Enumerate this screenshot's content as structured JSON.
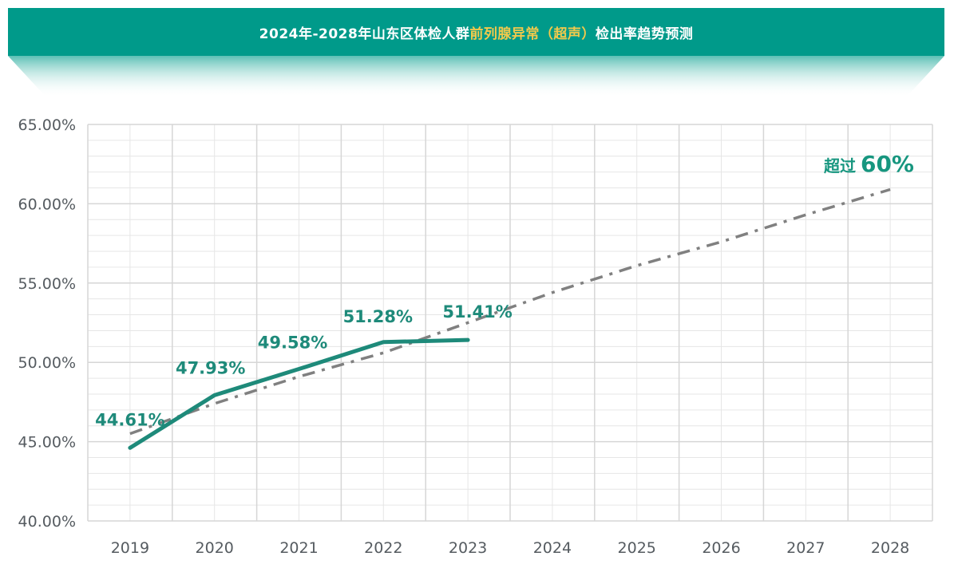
{
  "header": {
    "title_part1": "2024年-2028年山东区体检人群",
    "title_highlight": "前列腺异常（超声）",
    "title_part2": "检出率趋势预测"
  },
  "colors": {
    "banner": "#009a8a",
    "highlight": "#f2c94c",
    "actual_line": "#1e8a7a",
    "trend_line": "#808080",
    "grid": "#dcdcdc"
  },
  "chart_data": {
    "type": "line",
    "categories": [
      "2019",
      "2020",
      "2021",
      "2022",
      "2023",
      "2024",
      "2025",
      "2026",
      "2027",
      "2028"
    ],
    "ylim": [
      40,
      65
    ],
    "yticks": [
      40,
      45,
      50,
      55,
      60,
      65
    ],
    "ytick_labels": [
      "40.00%",
      "45.00%",
      "50.00%",
      "55.00%",
      "60.00%",
      "65.00%"
    ],
    "grid": true,
    "series": [
      {
        "values": [
          44.61,
          47.93,
          49.58,
          51.28,
          51.41,
          null,
          null,
          null,
          null,
          null
        ],
        "labels": [
          "44.61%",
          "47.93%",
          "49.58%",
          "51.28%",
          "51.41%"
        ],
        "style": "solid"
      },
      {
        "values": [
          45.5,
          47.4,
          49.1,
          50.6,
          52.5,
          54.4,
          56.1,
          57.6,
          59.3,
          60.9
        ],
        "style": "dash-dot"
      }
    ],
    "annotation": {
      "prefix": "超过",
      "value": "60%"
    }
  }
}
